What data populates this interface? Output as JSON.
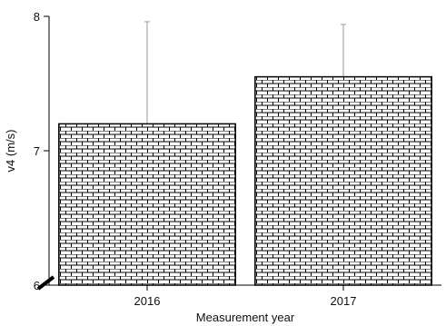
{
  "chart_data": {
    "type": "bar",
    "categories": [
      "2016",
      "2017"
    ],
    "values": [
      7.2,
      7.55
    ],
    "error_upper": [
      7.96,
      7.94
    ],
    "title": "",
    "xlabel": "Measurement year",
    "ylabel": "v4 (m/s)",
    "ylim": [
      6,
      8
    ],
    "yticks": [
      "6",
      "7",
      "8"
    ],
    "axis_break": true,
    "grid": false,
    "bar_fill": "brick-pattern",
    "bar_color": "#ffffff",
    "line_color": "#000000",
    "error_color": "#999999"
  }
}
